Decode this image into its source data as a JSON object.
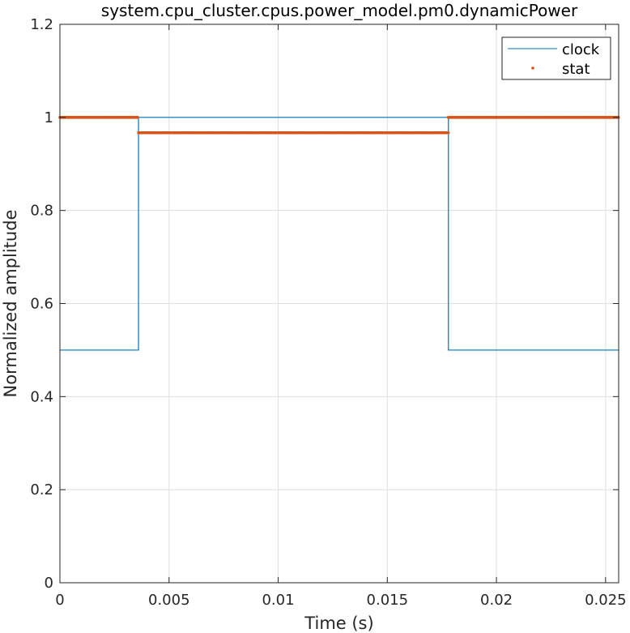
{
  "chart_data": {
    "type": "line",
    "title": "system.cpu_cluster.cpus.power_model.pm0.dynamicPower",
    "xlabel": "Time (s)",
    "ylabel": "Normalized amplitude",
    "xlim": [
      0,
      0.0256
    ],
    "ylim": [
      0,
      1.2
    ],
    "xticks": [
      0,
      0.005,
      0.01,
      0.015,
      0.02,
      0.025
    ],
    "xtick_labels": [
      "0",
      "0.005",
      "0.01",
      "0.015",
      "0.02",
      "0.025"
    ],
    "yticks": [
      0,
      0.2,
      0.4,
      0.6,
      0.8,
      1.0,
      1.2
    ],
    "ytick_labels": [
      "0",
      "0.2",
      "0.4",
      "0.6",
      "0.8",
      "1",
      "1.2"
    ],
    "grid": true,
    "legend_position": "top-right",
    "series": [
      {
        "name": "clock",
        "style": "line",
        "color": "#0072BD",
        "x": [
          0,
          0.0036,
          0.0036,
          0.0178,
          0.0178,
          0.0256
        ],
        "y": [
          0.5,
          0.5,
          1.0,
          1.0,
          0.5,
          0.5
        ]
      },
      {
        "name": "stat",
        "style": "dots",
        "color": "#D95319",
        "segments": [
          {
            "x": [
              0,
              0.0036
            ],
            "y": 1.0
          },
          {
            "x": [
              0.0036,
              0.0178
            ],
            "y": 0.967
          },
          {
            "x": [
              0.0178,
              0.0256
            ],
            "y": 1.0
          }
        ]
      }
    ]
  }
}
